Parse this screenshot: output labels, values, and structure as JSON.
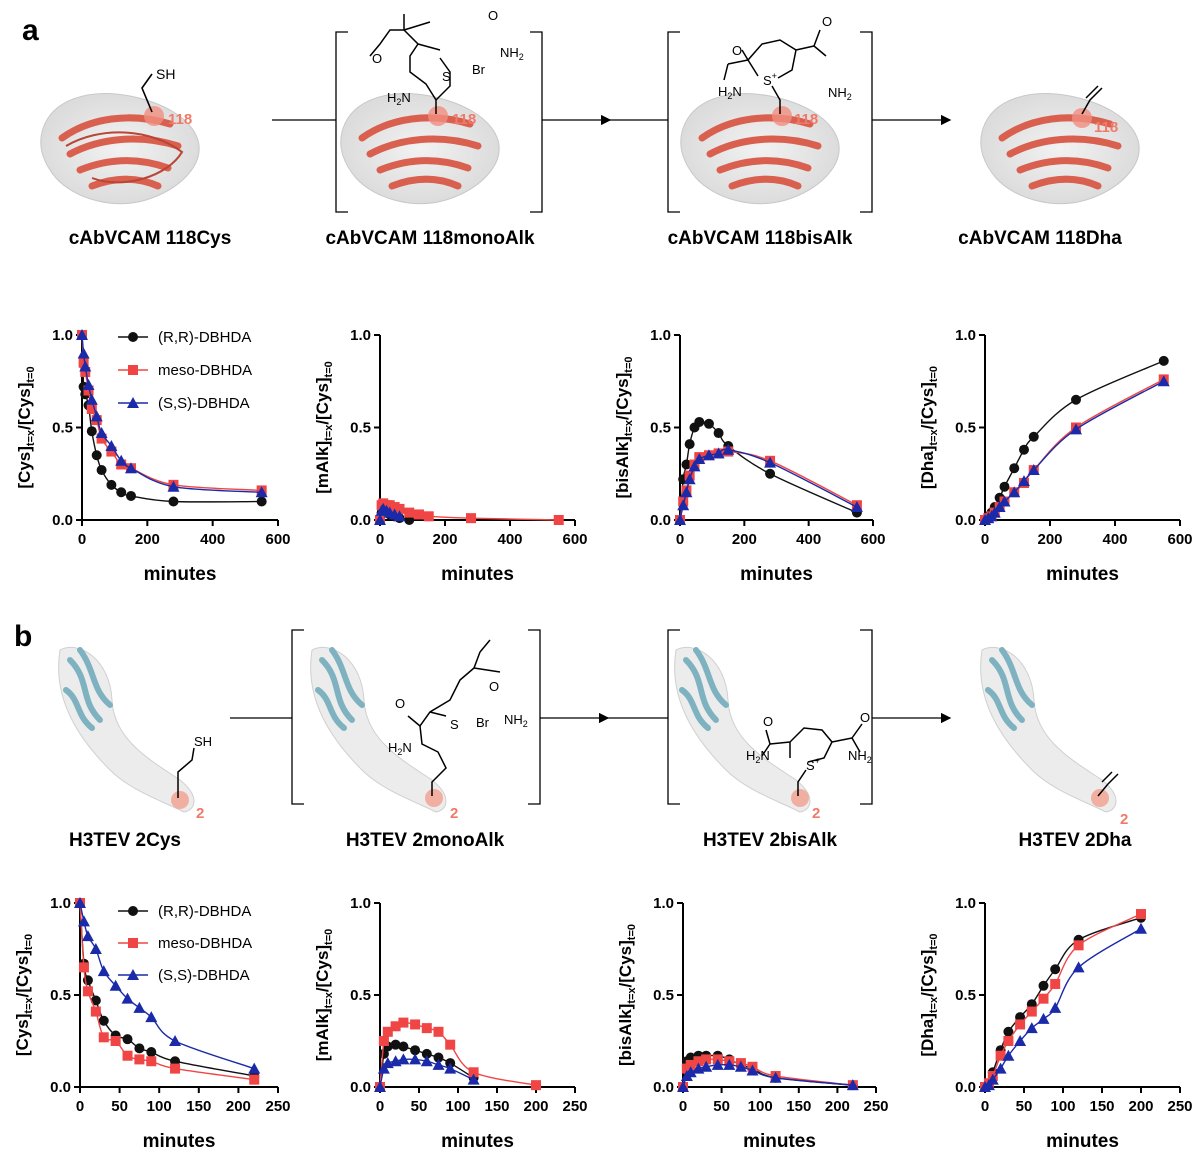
{
  "panel_a": {
    "letter": "a",
    "captions": [
      "cAbVCAM 118Cys",
      "cAbVCAM 118monoAlk",
      "cAbVCAM 118bisAlk",
      "cAbVCAM 118Dha"
    ],
    "site_label": "118",
    "atoms": {
      "sh": "SH",
      "o": "O",
      "nh2": "NH",
      "nh2_sub": "2",
      "h2n": "H",
      "h2n_sub": "2",
      "h2n_n": "N",
      "br": "Br",
      "s": "S",
      "s_plus": "S",
      "plus": "+"
    }
  },
  "panel_b": {
    "letter": "b",
    "captions": [
      "H3TEV 2Cys",
      "H3TEV 2monoAlk",
      "H3TEV 2bisAlk",
      "H3TEV 2Dha"
    ],
    "site_label": "2"
  },
  "legend": [
    "(R,R)-DBHDA",
    "meso-DBHDA",
    "(S,S)-DBHDA"
  ],
  "colors": {
    "RR": "#111111",
    "meso": "#f04545",
    "SS": "#1a2aa8",
    "protein_a": "#e07060",
    "protein_b": "#7fb2c0"
  },
  "chart_data": [
    {
      "id": "a1",
      "type": "scatter",
      "xlabel": "minutes",
      "ylabel_main": "[Cys]",
      "ylabel_sub1": "t=x",
      "ylabel_mid": "/[Cys]",
      "ylabel_sub2": "t=0",
      "xlim": [
        0,
        600
      ],
      "ylim": [
        0,
        1
      ],
      "xticks": [
        0,
        200,
        400,
        600
      ],
      "yticks": [
        0.0,
        0.5,
        1.0
      ],
      "series": [
        {
          "name": "(R,R)-DBHDA",
          "x": [
            0,
            5,
            10,
            20,
            30,
            45,
            60,
            90,
            120,
            150,
            280,
            550
          ],
          "y": [
            1.0,
            0.72,
            0.68,
            0.62,
            0.48,
            0.35,
            0.27,
            0.19,
            0.15,
            0.13,
            0.1,
            0.1
          ]
        },
        {
          "name": "meso-DBHDA",
          "x": [
            0,
            5,
            10,
            20,
            30,
            45,
            60,
            90,
            120,
            150,
            280,
            550
          ],
          "y": [
            1.0,
            0.85,
            0.8,
            0.7,
            0.6,
            0.54,
            0.44,
            0.37,
            0.3,
            0.28,
            0.19,
            0.16
          ]
        },
        {
          "name": "(S,S)-DBHDA",
          "x": [
            0,
            5,
            10,
            20,
            30,
            45,
            60,
            90,
            120,
            150,
            280,
            550
          ],
          "y": [
            1.0,
            0.9,
            0.83,
            0.73,
            0.65,
            0.56,
            0.47,
            0.4,
            0.32,
            0.28,
            0.18,
            0.15
          ]
        }
      ]
    },
    {
      "id": "a2",
      "type": "scatter",
      "xlabel": "minutes",
      "ylabel_main": "[mAlk]",
      "ylabel_sub1": "t=x",
      "ylabel_mid": "/[Cys]",
      "ylabel_sub2": "t=0",
      "xlim": [
        0,
        600
      ],
      "ylim": [
        0,
        1
      ],
      "xticks": [
        0,
        200,
        400,
        600
      ],
      "yticks": [
        0.0,
        0.5,
        1.0
      ],
      "series": [
        {
          "name": "(R,R)-DBHDA",
          "x": [
            0,
            5,
            10,
            20,
            30,
            45,
            60,
            90
          ],
          "y": [
            0,
            0.04,
            0.05,
            0.04,
            0.03,
            0.02,
            0.01,
            0.0
          ]
        },
        {
          "name": "meso-DBHDA",
          "x": [
            0,
            5,
            10,
            20,
            30,
            45,
            60,
            90,
            120,
            150,
            280,
            550
          ],
          "y": [
            0,
            0.08,
            0.09,
            0.08,
            0.08,
            0.07,
            0.06,
            0.04,
            0.03,
            0.02,
            0.01,
            0.0
          ]
        },
        {
          "name": "(S,S)-DBHDA",
          "x": [
            0,
            5,
            10,
            20,
            30,
            45,
            60
          ],
          "y": [
            0,
            0.05,
            0.06,
            0.05,
            0.04,
            0.03,
            0.02
          ]
        }
      ]
    },
    {
      "id": "a3",
      "type": "scatter",
      "xlabel": "minutes",
      "ylabel_main": "[bisAlk]",
      "ylabel_sub1": "t=x",
      "ylabel_mid": "/[Cys]",
      "ylabel_sub2": "t=0",
      "xlim": [
        0,
        600
      ],
      "ylim": [
        0,
        1
      ],
      "xticks": [
        0,
        200,
        400,
        600
      ],
      "yticks": [
        0.0,
        0.5,
        1.0
      ],
      "series": [
        {
          "name": "(R,R)-DBHDA",
          "x": [
            0,
            10,
            20,
            30,
            45,
            60,
            90,
            120,
            150,
            280,
            550
          ],
          "y": [
            0,
            0.22,
            0.3,
            0.41,
            0.5,
            0.53,
            0.52,
            0.47,
            0.4,
            0.25,
            0.04
          ]
        },
        {
          "name": "meso-DBHDA",
          "x": [
            0,
            10,
            20,
            30,
            45,
            60,
            90,
            120,
            150,
            280,
            550
          ],
          "y": [
            0,
            0.1,
            0.16,
            0.24,
            0.3,
            0.34,
            0.35,
            0.36,
            0.37,
            0.32,
            0.08
          ]
        },
        {
          "name": "(S,S)-DBHDA",
          "x": [
            0,
            10,
            20,
            30,
            45,
            60,
            90,
            120,
            150,
            280,
            550
          ],
          "y": [
            0,
            0.08,
            0.15,
            0.22,
            0.29,
            0.33,
            0.35,
            0.36,
            0.38,
            0.31,
            0.07
          ]
        }
      ]
    },
    {
      "id": "a4",
      "type": "scatter",
      "xlabel": "minutes",
      "ylabel_main": "[Dha]",
      "ylabel_sub1": "t=x",
      "ylabel_mid": "/[Cys]",
      "ylabel_sub2": "t=0",
      "xlim": [
        0,
        600
      ],
      "ylim": [
        0,
        1
      ],
      "xticks": [
        0,
        200,
        400,
        600
      ],
      "yticks": [
        0.0,
        0.5,
        1.0
      ],
      "series": [
        {
          "name": "(R,R)-DBHDA",
          "x": [
            0,
            10,
            20,
            30,
            45,
            60,
            90,
            120,
            150,
            280,
            550
          ],
          "y": [
            0,
            0.02,
            0.04,
            0.07,
            0.12,
            0.18,
            0.28,
            0.38,
            0.45,
            0.65,
            0.86
          ]
        },
        {
          "name": "meso-DBHDA",
          "x": [
            0,
            10,
            20,
            30,
            45,
            60,
            90,
            120,
            150,
            280,
            550
          ],
          "y": [
            0,
            0.01,
            0.02,
            0.04,
            0.07,
            0.1,
            0.15,
            0.2,
            0.27,
            0.5,
            0.76
          ]
        },
        {
          "name": "(S,S)-DBHDA",
          "x": [
            0,
            10,
            20,
            30,
            45,
            60,
            90,
            120,
            150,
            280,
            550
          ],
          "y": [
            0,
            0.01,
            0.02,
            0.04,
            0.07,
            0.1,
            0.15,
            0.21,
            0.27,
            0.49,
            0.75
          ]
        }
      ]
    },
    {
      "id": "b1",
      "type": "scatter",
      "xlabel": "minutes",
      "ylabel_main": "[Cys]",
      "ylabel_sub1": "t=x",
      "ylabel_mid": "/[Cys]",
      "ylabel_sub2": "t=0",
      "xlim": [
        0,
        250
      ],
      "ylim": [
        0,
        1
      ],
      "xticks": [
        0,
        50,
        100,
        150,
        200,
        250
      ],
      "yticks": [
        0.0,
        0.5,
        1.0
      ],
      "series": [
        {
          "name": "(R,R)-DBHDA",
          "x": [
            0,
            5,
            10,
            20,
            30,
            45,
            60,
            75,
            90,
            120,
            220
          ],
          "y": [
            1.0,
            0.67,
            0.58,
            0.47,
            0.36,
            0.28,
            0.26,
            0.21,
            0.19,
            0.14,
            0.06
          ]
        },
        {
          "name": "meso-DBHDA",
          "x": [
            0,
            5,
            10,
            20,
            30,
            45,
            60,
            75,
            90,
            120,
            220
          ],
          "y": [
            1.0,
            0.65,
            0.52,
            0.41,
            0.27,
            0.25,
            0.17,
            0.15,
            0.14,
            0.1,
            0.04
          ]
        },
        {
          "name": "(S,S)-DBHDA",
          "x": [
            0,
            5,
            10,
            20,
            30,
            45,
            60,
            75,
            90,
            120,
            220
          ],
          "y": [
            1.0,
            0.9,
            0.82,
            0.75,
            0.63,
            0.55,
            0.48,
            0.43,
            0.38,
            0.25,
            0.1
          ]
        }
      ]
    },
    {
      "id": "b2",
      "type": "scatter",
      "xlabel": "minutes",
      "ylabel_main": "[mAlk]",
      "ylabel_sub1": "t=x",
      "ylabel_mid": "/[Cys]",
      "ylabel_sub2": "t=0",
      "xlim": [
        0,
        250
      ],
      "ylim": [
        0,
        1
      ],
      "xticks": [
        0,
        50,
        100,
        150,
        200,
        250
      ],
      "yticks": [
        0.0,
        0.5,
        1.0
      ],
      "series": [
        {
          "name": "(R,R)-DBHDA",
          "x": [
            0,
            5,
            10,
            20,
            30,
            45,
            60,
            75,
            90,
            120
          ],
          "y": [
            0,
            0.18,
            0.22,
            0.23,
            0.22,
            0.2,
            0.18,
            0.16,
            0.13,
            0.05
          ]
        },
        {
          "name": "meso-DBHDA",
          "x": [
            0,
            5,
            10,
            20,
            30,
            45,
            60,
            75,
            90,
            120,
            200
          ],
          "y": [
            0,
            0.25,
            0.3,
            0.33,
            0.35,
            0.34,
            0.32,
            0.3,
            0.23,
            0.08,
            0.01
          ]
        },
        {
          "name": "(S,S)-DBHDA",
          "x": [
            0,
            5,
            10,
            20,
            30,
            45,
            60,
            75,
            90,
            120
          ],
          "y": [
            0,
            0.1,
            0.13,
            0.14,
            0.15,
            0.15,
            0.14,
            0.12,
            0.1,
            0.04
          ]
        }
      ]
    },
    {
      "id": "b3",
      "type": "scatter",
      "xlabel": "minutes",
      "ylabel_main": "[bisAlk]",
      "ylabel_sub1": "t=x",
      "ylabel_mid": "/[Cys]",
      "ylabel_sub2": "t=0",
      "xlim": [
        0,
        250
      ],
      "ylim": [
        0,
        1
      ],
      "xticks": [
        0,
        50,
        100,
        150,
        200,
        250
      ],
      "yticks": [
        0.0,
        0.5,
        1.0
      ],
      "series": [
        {
          "name": "(R,R)-DBHDA",
          "x": [
            0,
            5,
            10,
            20,
            30,
            45,
            60,
            75,
            90,
            120,
            220
          ],
          "y": [
            0,
            0.14,
            0.16,
            0.17,
            0.17,
            0.17,
            0.15,
            0.12,
            0.1,
            0.05,
            0.01
          ]
        },
        {
          "name": "meso-DBHDA",
          "x": [
            0,
            5,
            10,
            20,
            30,
            45,
            60,
            75,
            90,
            120,
            220
          ],
          "y": [
            0,
            0.1,
            0.12,
            0.14,
            0.15,
            0.15,
            0.14,
            0.13,
            0.11,
            0.06,
            0.01
          ]
        },
        {
          "name": "(S,S)-DBHDA",
          "x": [
            0,
            5,
            10,
            20,
            30,
            45,
            60,
            75,
            90,
            120,
            220
          ],
          "y": [
            0,
            0.06,
            0.08,
            0.1,
            0.11,
            0.12,
            0.12,
            0.11,
            0.09,
            0.05,
            0.01
          ]
        }
      ]
    },
    {
      "id": "b4",
      "type": "scatter",
      "xlabel": "minutes",
      "ylabel_main": "[Dha]",
      "ylabel_sub1": "t=x",
      "ylabel_mid": "/[Cys]",
      "ylabel_sub2": "t=0",
      "xlim": [
        0,
        250
      ],
      "ylim": [
        0,
        1
      ],
      "xticks": [
        0,
        50,
        100,
        150,
        200,
        250
      ],
      "yticks": [
        0.0,
        0.5,
        1.0
      ],
      "series": [
        {
          "name": "(R,R)-DBHDA",
          "x": [
            0,
            5,
            10,
            20,
            30,
            45,
            60,
            75,
            90,
            120,
            200
          ],
          "y": [
            0,
            0.02,
            0.08,
            0.2,
            0.3,
            0.38,
            0.45,
            0.55,
            0.64,
            0.8,
            0.92
          ]
        },
        {
          "name": "meso-DBHDA",
          "x": [
            0,
            5,
            10,
            20,
            30,
            45,
            60,
            75,
            90,
            120,
            200
          ],
          "y": [
            0,
            0.02,
            0.06,
            0.17,
            0.25,
            0.34,
            0.41,
            0.48,
            0.56,
            0.77,
            0.94
          ]
        },
        {
          "name": "(S,S)-DBHDA",
          "x": [
            0,
            5,
            10,
            20,
            30,
            45,
            60,
            75,
            90,
            120,
            200
          ],
          "y": [
            0,
            0.01,
            0.04,
            0.1,
            0.17,
            0.25,
            0.32,
            0.37,
            0.43,
            0.65,
            0.86
          ]
        }
      ]
    }
  ]
}
